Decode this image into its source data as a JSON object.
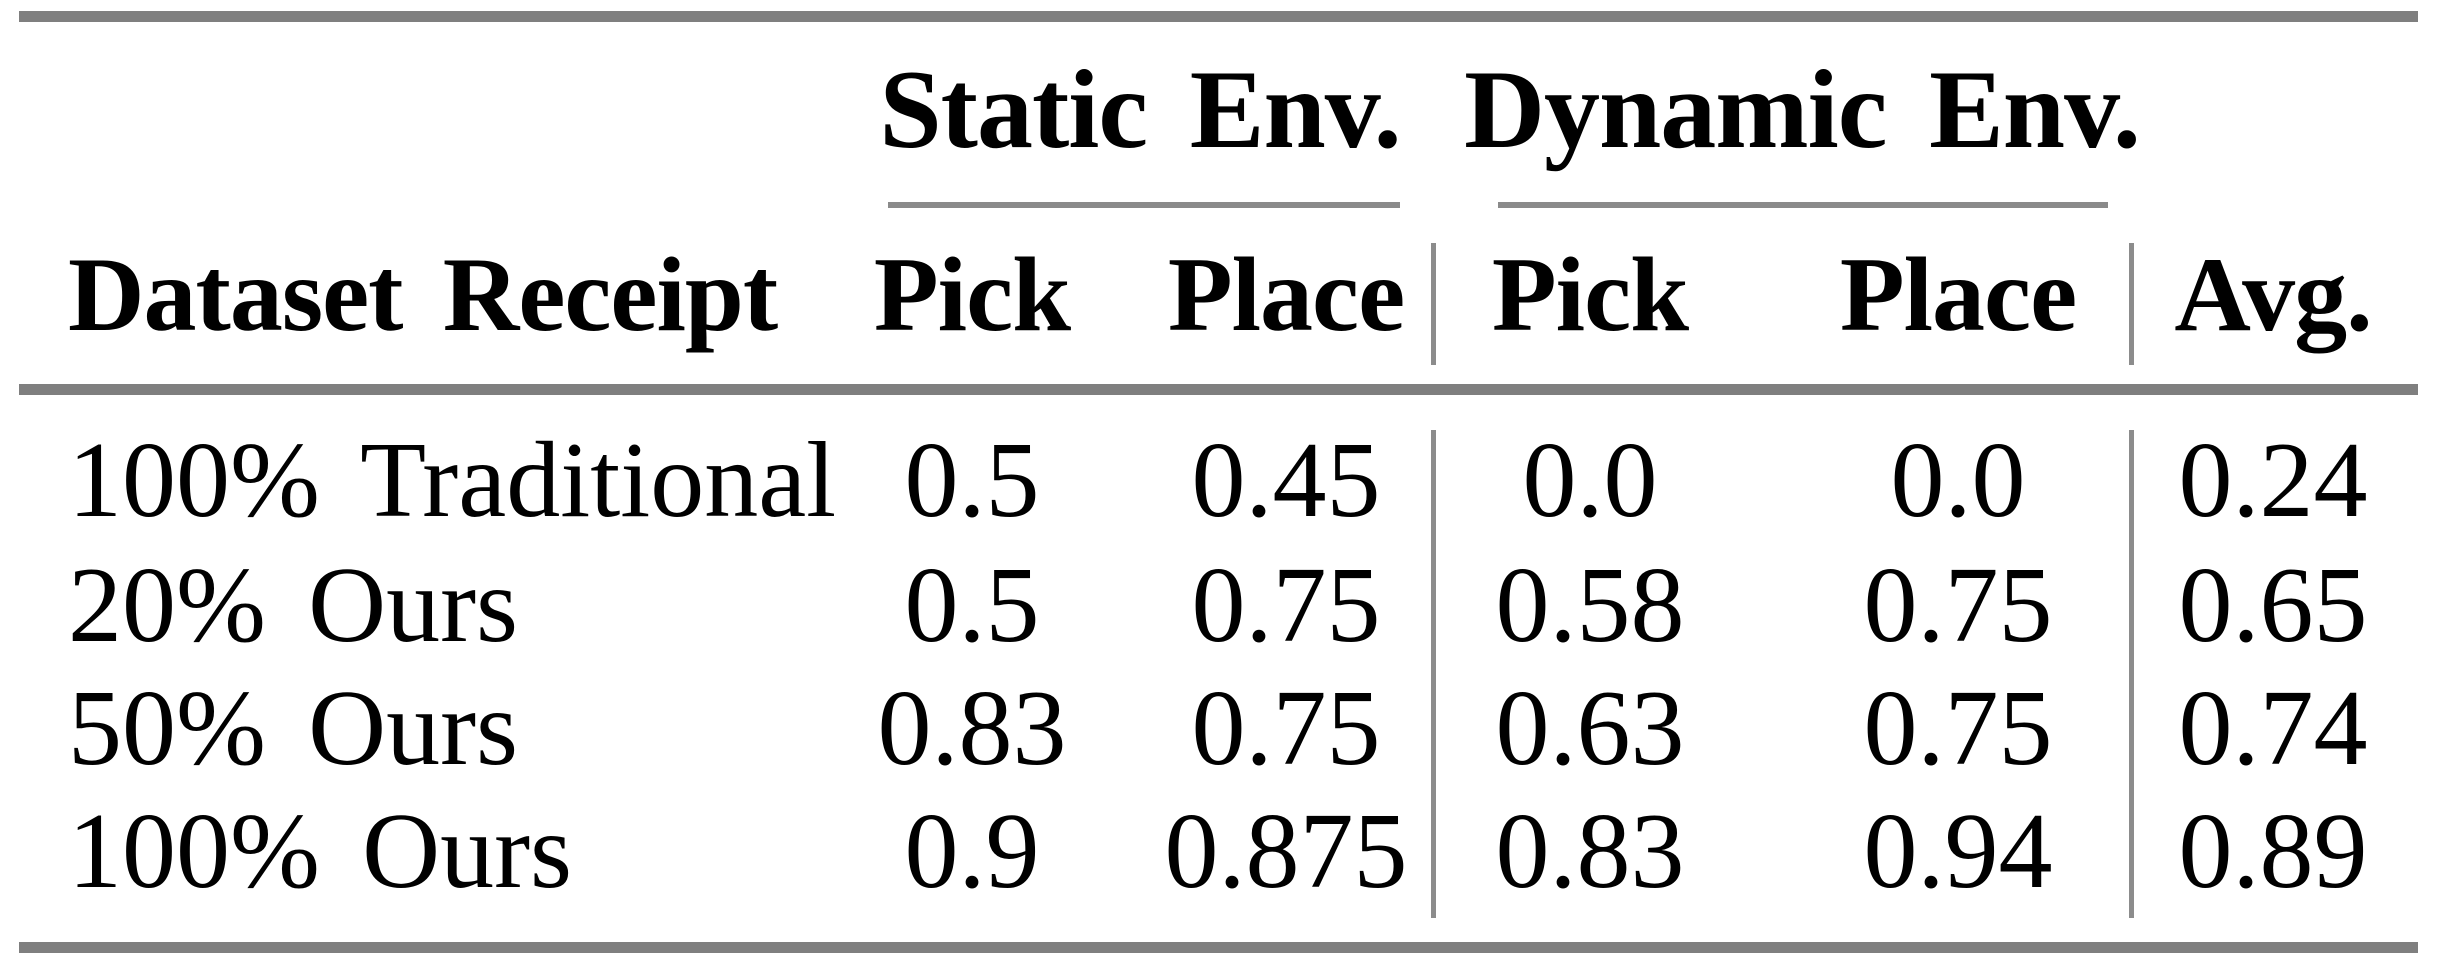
{
  "table": {
    "groups": {
      "static": {
        "label": "Static Env."
      },
      "dynamic": {
        "label": "Dynamic Env."
      }
    },
    "columns": {
      "row_label": "Dataset Receipt",
      "static_pick": "Pick",
      "static_place": "Place",
      "dynamic_pick": "Pick",
      "dynamic_place": "Place",
      "avg": "Avg."
    },
    "rows": [
      {
        "label": "100% Traditional",
        "static_pick": "0.5",
        "static_place": "0.45",
        "dynamic_pick": "0.0",
        "dynamic_place": "0.0",
        "avg": "0.24"
      },
      {
        "label": "20% Ours",
        "static_pick": "0.5",
        "static_place": "0.75",
        "dynamic_pick": "0.58",
        "dynamic_place": "0.75",
        "avg": "0.65"
      },
      {
        "label": "50% Ours",
        "static_pick": "0.83",
        "static_place": "0.75",
        "dynamic_pick": "0.63",
        "dynamic_place": "0.75",
        "avg": "0.74"
      },
      {
        "label": "100% Ours",
        "static_pick": "0.9",
        "static_place": "0.875",
        "dynamic_pick": "0.83",
        "dynamic_place": "0.94",
        "avg": "0.89"
      }
    ],
    "colors": {
      "rule_gray": "#7f7f7f",
      "text": "#000000",
      "background": "#ffffff"
    }
  }
}
